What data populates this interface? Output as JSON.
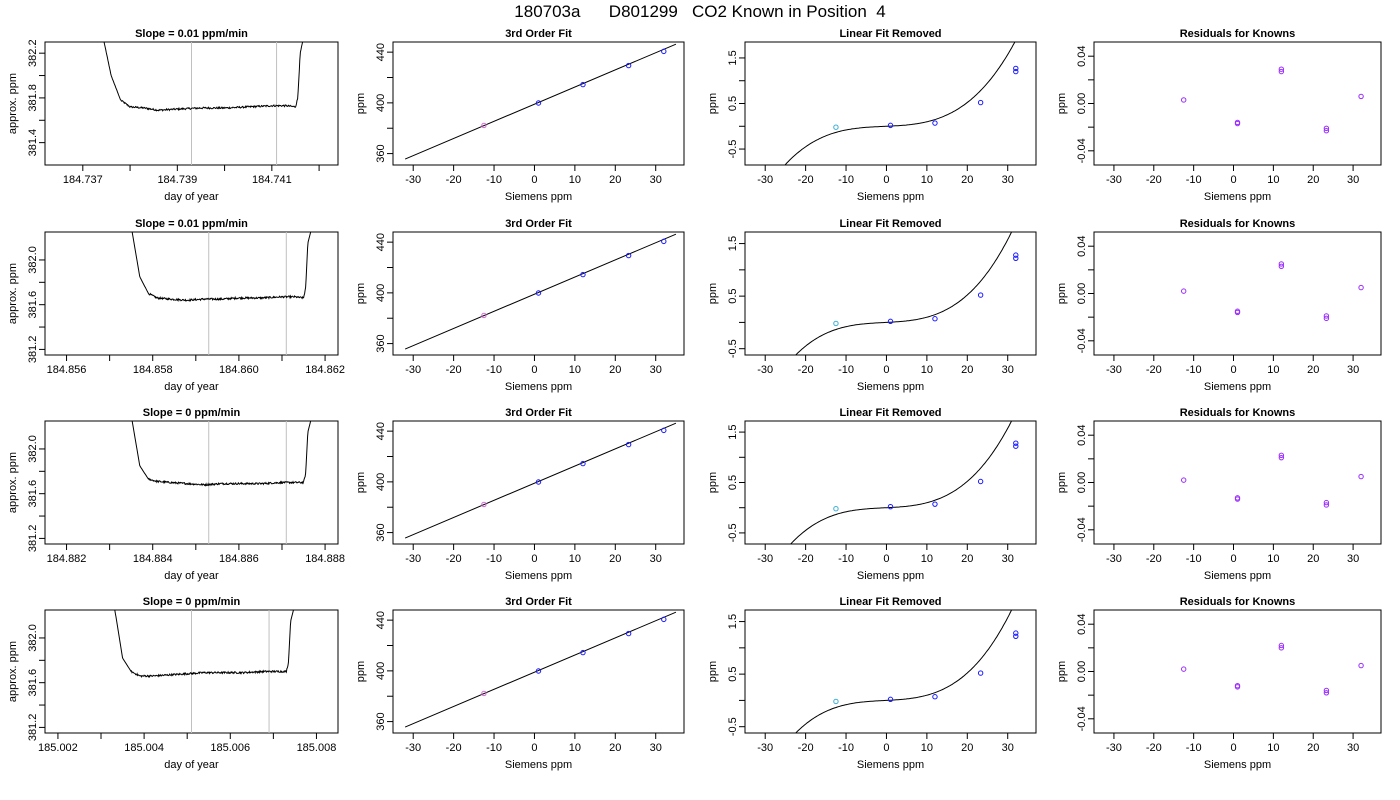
{
  "title": "180703a      D801299   CO2 Known in Position  4",
  "chart_data": [
    {
      "row": 1,
      "type": "line",
      "title": "Slope =  0.01  ppm/min",
      "xlabel": "day of year",
      "ylabel": "approx. ppm",
      "xlim": [
        184.7362,
        184.7424
      ],
      "ylim": [
        381.2,
        382.3
      ],
      "xticks": [
        "184.737",
        "184.739",
        "184.741"
      ],
      "xtick_values": [
        184.737,
        184.739,
        184.741
      ],
      "xticks_minor": [
        184.738,
        184.74,
        184.742
      ],
      "yticks": [
        "381.4",
        "381.8",
        "382.2"
      ],
      "ytick_values": [
        381.4,
        381.8,
        382.2
      ],
      "yticks_minor": [
        381.6,
        382.0
      ],
      "vlines": [
        184.7393,
        184.7411
      ],
      "trace": {
        "x": [
          184.7374,
          184.7376,
          184.7378,
          184.738,
          184.7383,
          184.7386,
          184.739,
          184.7395,
          184.74,
          184.7405,
          184.741,
          184.7413,
          184.7415,
          184.74155,
          184.7416,
          184.7417
        ],
        "y": [
          382.4,
          382.0,
          381.78,
          381.72,
          381.71,
          381.69,
          381.7,
          381.71,
          381.71,
          381.72,
          381.73,
          381.73,
          381.72,
          381.8,
          382.2,
          382.4
        ],
        "noise": 0.008
      }
    },
    {
      "row": 1,
      "type": "line",
      "title": "3rd Order Fit",
      "xlabel": "Siemens ppm",
      "ylabel": "ppm",
      "xlim": [
        -35,
        37
      ],
      "ylim": [
        351,
        448
      ],
      "xticks": [
        "-30",
        "-20",
        "-10",
        "0",
        "10",
        "20",
        "30"
      ],
      "xtick_values": [
        -30,
        -20,
        -10,
        0,
        10,
        20,
        30
      ],
      "yticks": [
        "360",
        "400",
        "440"
      ],
      "ytick_values": [
        360,
        400,
        440
      ],
      "yticks_minor": [
        380,
        420
      ],
      "line": {
        "x": [
          -32,
          35
        ],
        "y": [
          355.7,
          446.3
        ]
      },
      "points": {
        "x": [
          -12.5,
          1.0,
          12.0,
          23.3,
          32.0
        ],
        "y": [
          382.2,
          399.9,
          414.4,
          429.4,
          440.6
        ]
      }
    },
    {
      "row": 1,
      "type": "line",
      "title": "Linear Fit Removed",
      "xlabel": "Siemens ppm",
      "ylabel": "ppm",
      "xlim": [
        -35,
        37
      ],
      "ylim": [
        -0.85,
        1.85
      ],
      "xticks": [
        "-30",
        "-20",
        "-10",
        "0",
        "10",
        "20",
        "30"
      ],
      "xtick_values": [
        -30,
        -20,
        -10,
        0,
        10,
        20,
        30
      ],
      "yticks": [
        "-0.5",
        "0.5",
        "1.5"
      ],
      "ytick_values": [
        -0.5,
        0.5,
        1.5
      ],
      "yticks_minor": [
        0.0,
        1.0
      ],
      "curve": {
        "coeffs": [
          5.1e-05,
          9e-05,
          0.0039,
          0.037
        ],
        "xmin": -32,
        "xmax": 35
      },
      "points": {
        "x": [
          -12.5,
          1.0,
          12.0,
          23.3,
          32.0,
          32.0
        ],
        "y": [
          -0.02,
          0.02,
          0.07,
          0.52,
          1.2,
          1.27
        ]
      }
    },
    {
      "row": 1,
      "type": "scatter",
      "title": "Residuals for Knowns",
      "xlabel": "Siemens ppm",
      "ylabel": "ppm",
      "xlim": [
        -35,
        37
      ],
      "ylim": [
        -0.052,
        0.052
      ],
      "xticks": [
        "-30",
        "-20",
        "-10",
        "0",
        "10",
        "20",
        "30"
      ],
      "xtick_values": [
        -30,
        -20,
        -10,
        0,
        10,
        20,
        30
      ],
      "yticks": [
        "-0.04",
        "0.00",
        "0.04"
      ],
      "ytick_values": [
        -0.04,
        0.0,
        0.04
      ],
      "yticks_minor": [
        -0.02,
        0.02
      ],
      "points": {
        "x": [
          -12.5,
          1.0,
          1.0,
          12.0,
          12.0,
          23.3,
          23.3,
          32.0
        ],
        "y": [
          0.003,
          -0.016,
          -0.017,
          0.029,
          0.027,
          -0.021,
          -0.023,
          0.006
        ]
      }
    },
    {
      "row": 2,
      "type": "line",
      "title": "Slope =  0.01  ppm/min",
      "xlabel": "day of year",
      "ylabel": "approx. ppm",
      "xlim": [
        184.8555,
        184.8623
      ],
      "ylim": [
        381.15,
        382.25
      ],
      "xticks": [
        "184.856",
        "184.858",
        "184.860",
        "184.862"
      ],
      "xtick_values": [
        184.856,
        184.858,
        184.86,
        184.862
      ],
      "xticks_minor": [
        184.857,
        184.859,
        184.861
      ],
      "yticks": [
        "381.2",
        "381.6",
        "382.0"
      ],
      "ytick_values": [
        381.2,
        381.6,
        382.0
      ],
      "yticks_minor": [
        381.4,
        381.8
      ],
      "vlines": [
        184.8593,
        184.8611
      ],
      "trace": {
        "x": [
          184.8575,
          184.8577,
          184.8579,
          184.8581,
          184.8584,
          184.8588,
          184.8592,
          184.8596,
          184.86,
          184.8605,
          184.861,
          184.8613,
          184.8615,
          184.86155,
          184.8616,
          184.8617
        ],
        "y": [
          382.3,
          381.85,
          381.7,
          381.66,
          381.65,
          381.64,
          381.65,
          381.65,
          381.66,
          381.66,
          381.67,
          381.67,
          381.66,
          381.75,
          382.15,
          382.3
        ],
        "noise": 0.008
      }
    },
    {
      "row": 2,
      "type": "line",
      "title": "3rd Order Fit",
      "xlabel": "Siemens ppm",
      "ylabel": "ppm",
      "xlim": [
        -35,
        37
      ],
      "ylim": [
        351,
        448
      ],
      "xticks": [
        "-30",
        "-20",
        "-10",
        "0",
        "10",
        "20",
        "30"
      ],
      "xtick_values": [
        -30,
        -20,
        -10,
        0,
        10,
        20,
        30
      ],
      "yticks": [
        "360",
        "400",
        "440"
      ],
      "ytick_values": [
        360,
        400,
        440
      ],
      "yticks_minor": [
        380,
        420
      ],
      "line": {
        "x": [
          -32,
          35
        ],
        "y": [
          355.7,
          446.3
        ]
      },
      "points": {
        "x": [
          -12.5,
          1.0,
          12.0,
          23.3,
          32.0
        ],
        "y": [
          382.2,
          399.9,
          414.4,
          429.4,
          440.6
        ]
      }
    },
    {
      "row": 2,
      "type": "line",
      "title": "Linear Fit Removed",
      "xlabel": "Siemens ppm",
      "ylabel": "ppm",
      "xlim": [
        -35,
        37
      ],
      "ylim": [
        -0.62,
        1.72
      ],
      "xticks": [
        "-30",
        "-20",
        "-10",
        "0",
        "10",
        "20",
        "30"
      ],
      "xtick_values": [
        -30,
        -20,
        -10,
        0,
        10,
        20,
        30
      ],
      "yticks": [
        "-0.5",
        "0.5",
        "1.5"
      ],
      "ytick_values": [
        -0.5,
        0.5,
        1.5
      ],
      "yticks_minor": [
        0.0,
        1.0
      ],
      "curve": {
        "coeffs": [
          5.1e-05,
          9e-05,
          0.0039,
          0.037
        ],
        "xmin": -32,
        "xmax": 35
      },
      "points": {
        "x": [
          -12.5,
          1.0,
          12.0,
          23.3,
          32.0,
          32.0
        ],
        "y": [
          -0.02,
          0.02,
          0.07,
          0.52,
          1.22,
          1.28
        ]
      }
    },
    {
      "row": 2,
      "type": "scatter",
      "title": "Residuals for Knowns",
      "xlabel": "Siemens ppm",
      "ylabel": "ppm",
      "xlim": [
        -35,
        37
      ],
      "ylim": [
        -0.052,
        0.052
      ],
      "xticks": [
        "-30",
        "-20",
        "-10",
        "0",
        "10",
        "20",
        "30"
      ],
      "xtick_values": [
        -30,
        -20,
        -10,
        0,
        10,
        20,
        30
      ],
      "yticks": [
        "-0.04",
        "0.00",
        "0.04"
      ],
      "ytick_values": [
        -0.04,
        0.0,
        0.04
      ],
      "yticks_minor": [
        -0.02,
        0.02
      ],
      "points": {
        "x": [
          -12.5,
          1.0,
          1.0,
          12.0,
          12.0,
          23.3,
          23.3,
          32.0
        ],
        "y": [
          0.002,
          -0.015,
          -0.016,
          0.025,
          0.023,
          -0.019,
          -0.021,
          0.005
        ]
      }
    },
    {
      "row": 3,
      "type": "line",
      "title": "Slope =  0  ppm/min",
      "xlabel": "day of year",
      "ylabel": "approx. ppm",
      "xlim": [
        184.8815,
        184.8883
      ],
      "ylim": [
        381.15,
        382.25
      ],
      "xticks": [
        "184.882",
        "184.884",
        "184.886",
        "184.888"
      ],
      "xtick_values": [
        184.882,
        184.884,
        184.886,
        184.888
      ],
      "xticks_minor": [
        184.883,
        184.885,
        184.887
      ],
      "yticks": [
        "381.2",
        "381.6",
        "382.0"
      ],
      "ytick_values": [
        381.2,
        381.6,
        382.0
      ],
      "yticks_minor": [
        381.4,
        381.8
      ],
      "vlines": [
        184.8853,
        184.8871
      ],
      "trace": {
        "x": [
          184.8835,
          184.8837,
          184.8839,
          184.8841,
          184.8844,
          184.8848,
          184.8852,
          184.8856,
          184.886,
          184.8865,
          184.887,
          184.8873,
          184.8875,
          184.88755,
          184.8876,
          184.8877
        ],
        "y": [
          382.3,
          381.85,
          381.73,
          381.71,
          381.7,
          381.69,
          381.68,
          381.69,
          381.69,
          381.69,
          381.7,
          381.7,
          381.7,
          381.78,
          382.15,
          382.3
        ],
        "noise": 0.008
      }
    },
    {
      "row": 3,
      "type": "line",
      "title": "3rd Order Fit",
      "xlabel": "Siemens ppm",
      "ylabel": "ppm",
      "xlim": [
        -35,
        37
      ],
      "ylim": [
        351,
        448
      ],
      "xticks": [
        "-30",
        "-20",
        "-10",
        "0",
        "10",
        "20",
        "30"
      ],
      "xtick_values": [
        -30,
        -20,
        -10,
        0,
        10,
        20,
        30
      ],
      "yticks": [
        "360",
        "400",
        "440"
      ],
      "ytick_values": [
        360,
        400,
        440
      ],
      "yticks_minor": [
        380,
        420
      ],
      "line": {
        "x": [
          -32,
          35
        ],
        "y": [
          355.7,
          446.3
        ]
      },
      "points": {
        "x": [
          -12.5,
          1.0,
          12.0,
          23.3,
          32.0
        ],
        "y": [
          382.2,
          399.9,
          414.4,
          429.4,
          440.6
        ]
      }
    },
    {
      "row": 3,
      "type": "line",
      "title": "Linear Fit Removed",
      "xlabel": "Siemens ppm",
      "ylabel": "ppm",
      "xlim": [
        -35,
        37
      ],
      "ylim": [
        -0.72,
        1.72
      ],
      "xticks": [
        "-30",
        "-20",
        "-10",
        "0",
        "10",
        "20",
        "30"
      ],
      "xtick_values": [
        -30,
        -20,
        -10,
        0,
        10,
        20,
        30
      ],
      "yticks": [
        "-0.5",
        "0.5",
        "1.5"
      ],
      "ytick_values": [
        -0.5,
        0.5,
        1.5
      ],
      "yticks_minor": [
        0.0,
        1.0
      ],
      "curve": {
        "coeffs": [
          5.1e-05,
          9e-05,
          0.0039,
          0.037
        ],
        "xmin": -32,
        "xmax": 35
      },
      "points": {
        "x": [
          -12.5,
          1.0,
          12.0,
          23.3,
          32.0,
          32.0
        ],
        "y": [
          -0.02,
          0.02,
          0.07,
          0.52,
          1.22,
          1.28
        ]
      }
    },
    {
      "row": 3,
      "type": "scatter",
      "title": "Residuals for Knowns",
      "xlabel": "Siemens ppm",
      "ylabel": "ppm",
      "xlim": [
        -35,
        37
      ],
      "ylim": [
        -0.052,
        0.052
      ],
      "xticks": [
        "-30",
        "-20",
        "-10",
        "0",
        "10",
        "20",
        "30"
      ],
      "xtick_values": [
        -30,
        -20,
        -10,
        0,
        10,
        20,
        30
      ],
      "yticks": [
        "-0.04",
        "0.00",
        "0.04"
      ],
      "ytick_values": [
        -0.04,
        0.0,
        0.04
      ],
      "yticks_minor": [
        -0.02,
        0.02
      ],
      "points": {
        "x": [
          -12.5,
          1.0,
          1.0,
          12.0,
          12.0,
          23.3,
          23.3,
          32.0
        ],
        "y": [
          0.002,
          -0.013,
          -0.014,
          0.023,
          0.021,
          -0.017,
          -0.019,
          0.005
        ]
      }
    },
    {
      "row": 4,
      "type": "line",
      "title": "Slope =  0  ppm/min",
      "xlabel": "day of year",
      "ylabel": "approx. ppm",
      "xlim": [
        185.0017,
        185.0085
      ],
      "ylim": [
        381.15,
        382.25
      ],
      "xticks": [
        "185.002",
        "185.004",
        "185.006",
        "185.008"
      ],
      "xtick_values": [
        185.002,
        185.004,
        185.006,
        185.008
      ],
      "xticks_minor": [
        185.003,
        185.005,
        185.007
      ],
      "yticks": [
        "381.2",
        "381.6",
        "382.0"
      ],
      "ytick_values": [
        381.2,
        381.6,
        382.0
      ],
      "yticks_minor": [
        381.4,
        381.8
      ],
      "vlines": [
        185.0051,
        185.0069
      ],
      "trace": {
        "x": [
          185.0033,
          185.0035,
          185.0037,
          185.0039,
          185.0042,
          185.0046,
          185.005,
          185.0054,
          185.0058,
          185.0063,
          185.0068,
          185.0071,
          185.0073,
          185.00735,
          185.0074,
          185.0075
        ],
        "y": [
          382.3,
          381.82,
          381.7,
          381.66,
          381.66,
          381.67,
          381.68,
          381.69,
          381.69,
          381.69,
          381.7,
          381.7,
          381.7,
          381.78,
          382.15,
          382.3
        ],
        "noise": 0.008
      }
    },
    {
      "row": 4,
      "type": "line",
      "title": "3rd Order Fit",
      "xlabel": "Siemens ppm",
      "ylabel": "ppm",
      "xlim": [
        -35,
        37
      ],
      "ylim": [
        351,
        448
      ],
      "xticks": [
        "-30",
        "-20",
        "-10",
        "0",
        "10",
        "20",
        "30"
      ],
      "xtick_values": [
        -30,
        -20,
        -10,
        0,
        10,
        20,
        30
      ],
      "yticks": [
        "360",
        "400",
        "440"
      ],
      "ytick_values": [
        360,
        400,
        440
      ],
      "yticks_minor": [
        380,
        420
      ],
      "line": {
        "x": [
          -32,
          35
        ],
        "y": [
          355.7,
          446.3
        ]
      },
      "points": {
        "x": [
          -12.5,
          1.0,
          12.0,
          23.3,
          32.0
        ],
        "y": [
          382.2,
          399.9,
          414.4,
          429.4,
          440.6
        ]
      }
    },
    {
      "row": 4,
      "type": "line",
      "title": "Linear Fit Removed",
      "xlabel": "Siemens ppm",
      "ylabel": "ppm",
      "xlim": [
        -35,
        37
      ],
      "ylim": [
        -0.62,
        1.72
      ],
      "xticks": [
        "-30",
        "-20",
        "-10",
        "0",
        "10",
        "20",
        "30"
      ],
      "xtick_values": [
        -30,
        -20,
        -10,
        0,
        10,
        20,
        30
      ],
      "yticks": [
        "-0.5",
        "0.5",
        "1.5"
      ],
      "ytick_values": [
        -0.5,
        0.5,
        1.5
      ],
      "yticks_minor": [
        0.0,
        1.0
      ],
      "curve": {
        "coeffs": [
          5.1e-05,
          9e-05,
          0.0039,
          0.037
        ],
        "xmin": -32,
        "xmax": 35
      },
      "points": {
        "x": [
          -12.5,
          1.0,
          12.0,
          23.3,
          32.0,
          32.0
        ],
        "y": [
          -0.02,
          0.02,
          0.07,
          0.52,
          1.22,
          1.28
        ]
      }
    },
    {
      "row": 4,
      "type": "scatter",
      "title": "Residuals for Knowns",
      "xlabel": "Siemens ppm",
      "ylabel": "ppm",
      "xlim": [
        -35,
        37
      ],
      "ylim": [
        -0.052,
        0.052
      ],
      "xticks": [
        "-30",
        "-20",
        "-10",
        "0",
        "10",
        "20",
        "30"
      ],
      "xtick_values": [
        -30,
        -20,
        -10,
        0,
        10,
        20,
        30
      ],
      "yticks": [
        "-0.04",
        "0.00",
        "0.04"
      ],
      "ytick_values": [
        -0.04,
        0.0,
        0.04
      ],
      "yticks_minor": [
        -0.02,
        0.02
      ],
      "points": {
        "x": [
          -12.5,
          1.0,
          1.0,
          12.0,
          12.0,
          23.3,
          23.3,
          32.0
        ],
        "y": [
          0.002,
          -0.012,
          -0.013,
          0.022,
          0.02,
          -0.016,
          -0.018,
          0.005
        ]
      }
    }
  ],
  "colors": {
    "axis": "#000000",
    "line": "#000000",
    "vline": "#c0c0c0",
    "point_blue": "#1a1aff",
    "point_purple": "#9a2bff",
    "point_cyan": "#3aaed8",
    "point_pink": "#d86ad8"
  }
}
